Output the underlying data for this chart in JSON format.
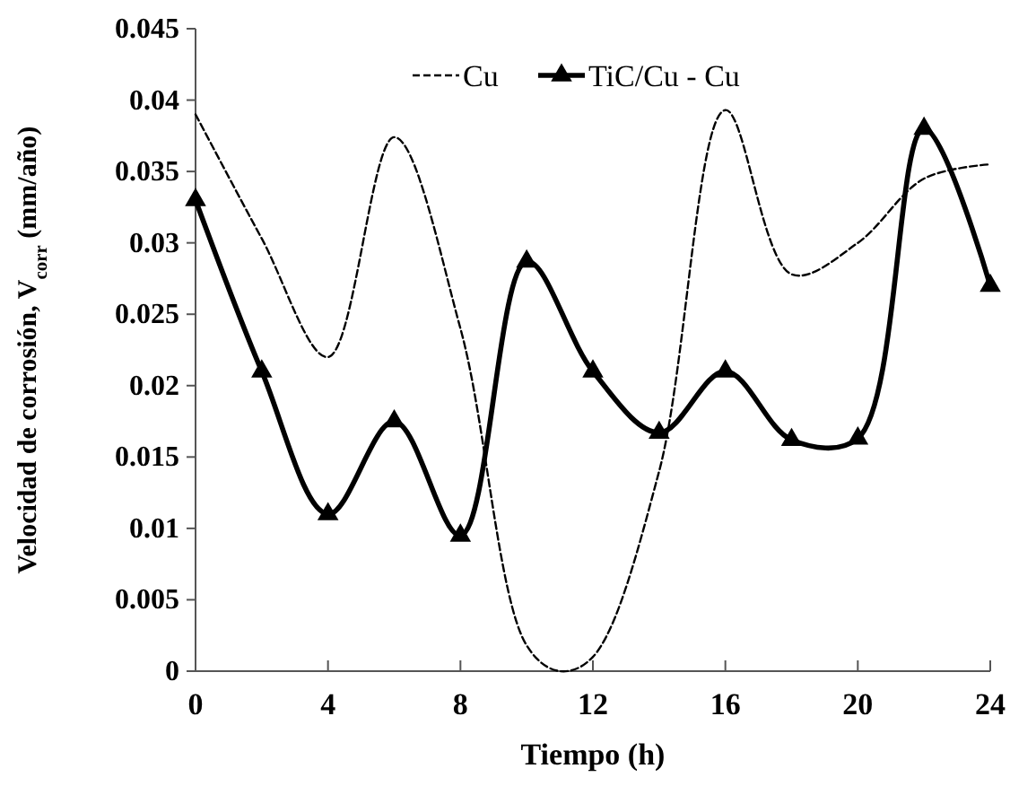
{
  "chart_data": {
    "type": "line",
    "xlabel": "Tiempo (h)",
    "ylabel": "Velocidad de corrosión, V$_{corr}$  (mm/año)",
    "xlim": [
      0,
      24
    ],
    "xticks": [
      0,
      4,
      8,
      12,
      16,
      20,
      24
    ],
    "ylim": [
      0,
      0.045
    ],
    "yticks": [
      0,
      0.005,
      0.01,
      0.015,
      0.02,
      0.025,
      0.03,
      0.035,
      0.04,
      0.045
    ],
    "grid": false,
    "legend": "top",
    "series": [
      {
        "name": "Cu",
        "color": "#000000",
        "line_style": "dashed",
        "marker": "none",
        "x": [
          0,
          2,
          4,
          6,
          8,
          10,
          11,
          12,
          14,
          16,
          18,
          20,
          22,
          24
        ],
        "values": [
          0.039,
          0.0303,
          0.022,
          0.0374,
          0.024,
          0.0018,
          0,
          0.001,
          0.014,
          0.0393,
          0.0278,
          0.03,
          0.0345,
          0.0355
        ]
      },
      {
        "name": "TiC/Cu - Cu",
        "color": "#000000",
        "line_style": "solid",
        "marker": "triangle",
        "x": [
          0,
          2,
          4,
          6,
          8,
          10,
          12,
          14,
          16,
          18,
          20,
          22,
          24
        ],
        "values": [
          0.033,
          0.021,
          0.011,
          0.0175,
          0.0095,
          0.0287,
          0.021,
          0.0167,
          0.021,
          0.0162,
          0.0163,
          0.038,
          0.027
        ]
      }
    ]
  }
}
